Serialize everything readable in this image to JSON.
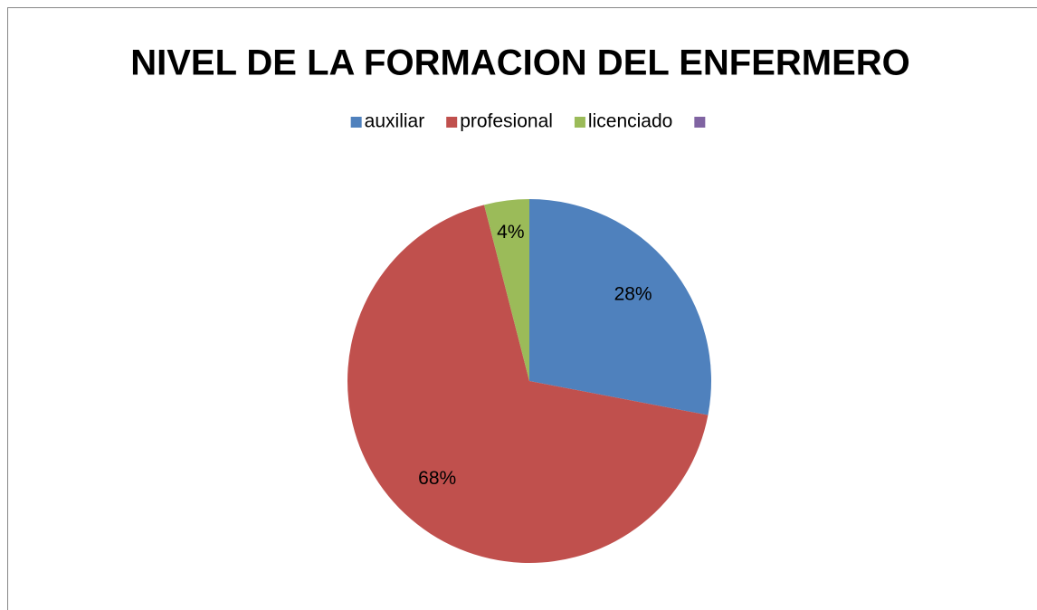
{
  "chart_data": {
    "type": "pie",
    "title": "NIVEL DE LA FORMACION DEL ENFERMERO",
    "categories": [
      "auxiliar",
      "profesional",
      "licenciado",
      null
    ],
    "values": [
      28,
      68,
      4,
      0
    ],
    "value_labels": [
      "28%",
      "68%",
      "4%",
      null
    ],
    "colors": [
      "#4f81bd",
      "#c0504d",
      "#9bbb59",
      "#8064a2"
    ],
    "legend": "top"
  }
}
